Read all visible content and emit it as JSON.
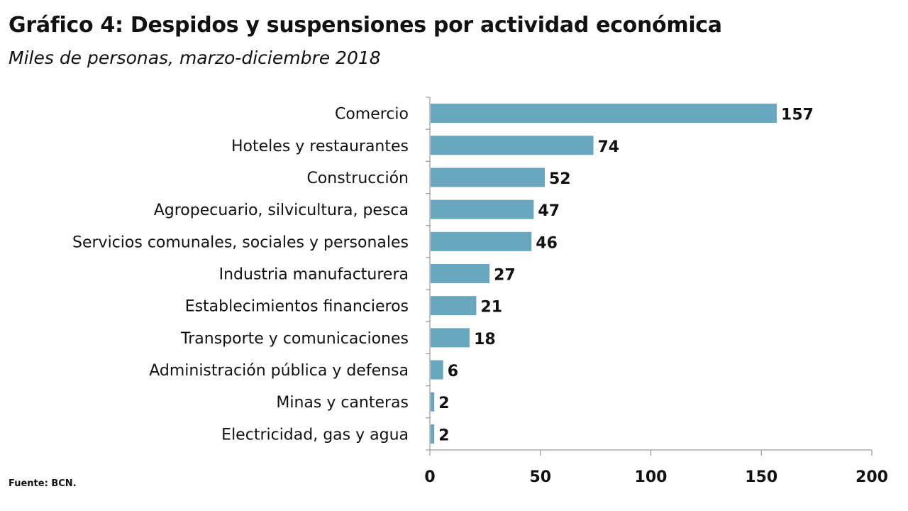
{
  "header": {
    "title": "Gráfico 4: Despidos y suspensiones por actividad económica",
    "subtitle": "Miles de personas, marzo-diciembre 2018"
  },
  "footer": {
    "source": "Fuente: BCN."
  },
  "colors": {
    "bar": "#68a7bd",
    "axis": "#999999",
    "text": "#111111"
  },
  "chart_data": {
    "type": "bar",
    "orientation": "horizontal",
    "title": "Gráfico 4: Despidos y suspensiones por actividad económica",
    "subtitle": "Miles de personas, marzo-diciembre 2018",
    "categories": [
      "Comercio",
      "Hoteles y restaurantes",
      "Construcción",
      "Agropecuario, silvicultura, pesca",
      "Servicios comunales, sociales y personales",
      "Industria manufacturera",
      "Establecimientos financieros",
      "Transporte y comunicaciones",
      "Administración pública y defensa",
      "Minas y canteras",
      "Electricidad, gas y agua"
    ],
    "values": [
      157,
      74,
      52,
      47,
      46,
      27,
      21,
      18,
      6,
      2,
      2
    ],
    "xlim": [
      0,
      200
    ],
    "xticks": [
      0,
      50,
      100,
      150,
      200
    ],
    "grid": false,
    "legend": "none"
  }
}
